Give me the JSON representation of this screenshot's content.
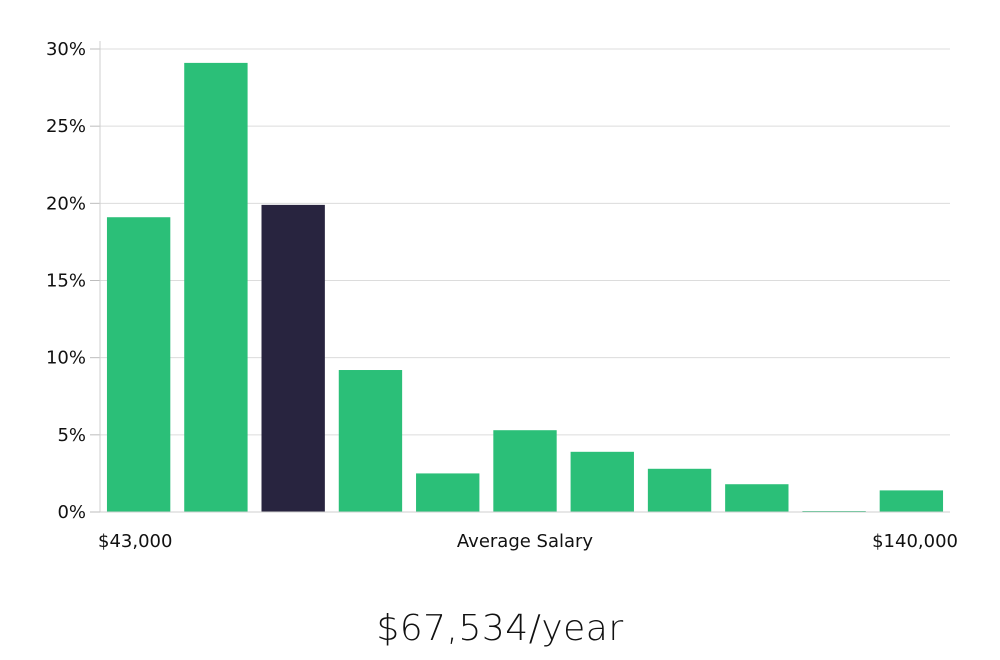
{
  "chart_data": {
    "type": "bar",
    "values": [
      19.1,
      29.1,
      19.9,
      9.2,
      2.5,
      5.3,
      3.9,
      2.8,
      1.8,
      0.05,
      1.4
    ],
    "highlight_index": 2,
    "colors": {
      "bar": "#2bbf78",
      "highlight": "#28243f",
      "grid": "#dcdcdc"
    },
    "ylim": [
      0,
      30
    ],
    "yticks": [
      {
        "value": 0,
        "label": "0%"
      },
      {
        "value": 5,
        "label": "5%"
      },
      {
        "value": 10,
        "label": "10%"
      },
      {
        "value": 15,
        "label": "15%"
      },
      {
        "value": 20,
        "label": "20%"
      },
      {
        "value": 25,
        "label": "25%"
      },
      {
        "value": 30,
        "label": "30%"
      }
    ],
    "x_min_label": "$43,000",
    "x_max_label": "$140,000",
    "xlabel": "Average Salary",
    "grid": true,
    "legend": "none"
  },
  "summary": {
    "salary": "$67,534/year"
  }
}
